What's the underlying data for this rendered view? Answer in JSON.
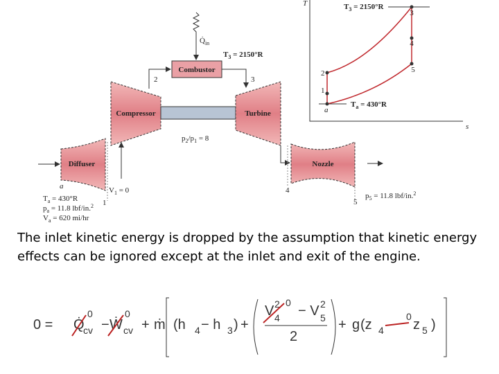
{
  "diagram": {
    "q_in": [
      "Q̇",
      "in"
    ],
    "t3": [
      "T",
      "3",
      " = 2150°R"
    ],
    "combustor": "Combustor",
    "n2": "2",
    "n3": "3",
    "compressor": "Compressor",
    "turbine": "Turbine",
    "pressure_ratio": [
      "p",
      "2",
      "/p",
      "1",
      " = 8"
    ],
    "diffuser": "Diffuser",
    "nozzle": "Nozzle",
    "a": "a",
    "v1": [
      "V",
      "1",
      " = 0"
    ],
    "n1": "1",
    "n4": "4",
    "n5": "5",
    "p5": [
      "p",
      "5",
      " = 11.8 lbf/in.",
      "2"
    ],
    "ta": [
      "T",
      "a",
      " = 430°R"
    ],
    "pa": [
      "p",
      "a",
      " = 11.8 lbf/in.",
      "2"
    ],
    "va": [
      "V",
      "a",
      " = 620 mi/hr"
    ]
  },
  "ts_diagram": {
    "t_axis": "T",
    "s_axis": "s",
    "t3": [
      "T",
      "3",
      " = 2150°R"
    ],
    "ta": [
      "T",
      "a",
      " = 430°R"
    ],
    "points": [
      "3",
      "4",
      "5",
      "2",
      "1",
      "a"
    ]
  },
  "text": "The inlet kinetic energy is dropped by the assumption that kinetic energy effects can be ignored except at the inlet and exit of the engine.",
  "equation": [
    "0 =",
    "Q̇",
    "0",
    "cv",
    "−",
    "Ẇ",
    "0",
    "cv",
    "+",
    "ṁ",
    "(h",
    "4",
    " − h",
    "3",
    ")",
    "+",
    "V",
    "2",
    "4",
    "0",
    "− V",
    "2",
    "5",
    "2",
    "+",
    "g",
    "(z",
    "4",
    "0",
    "z",
    "5",
    ")"
  ]
}
